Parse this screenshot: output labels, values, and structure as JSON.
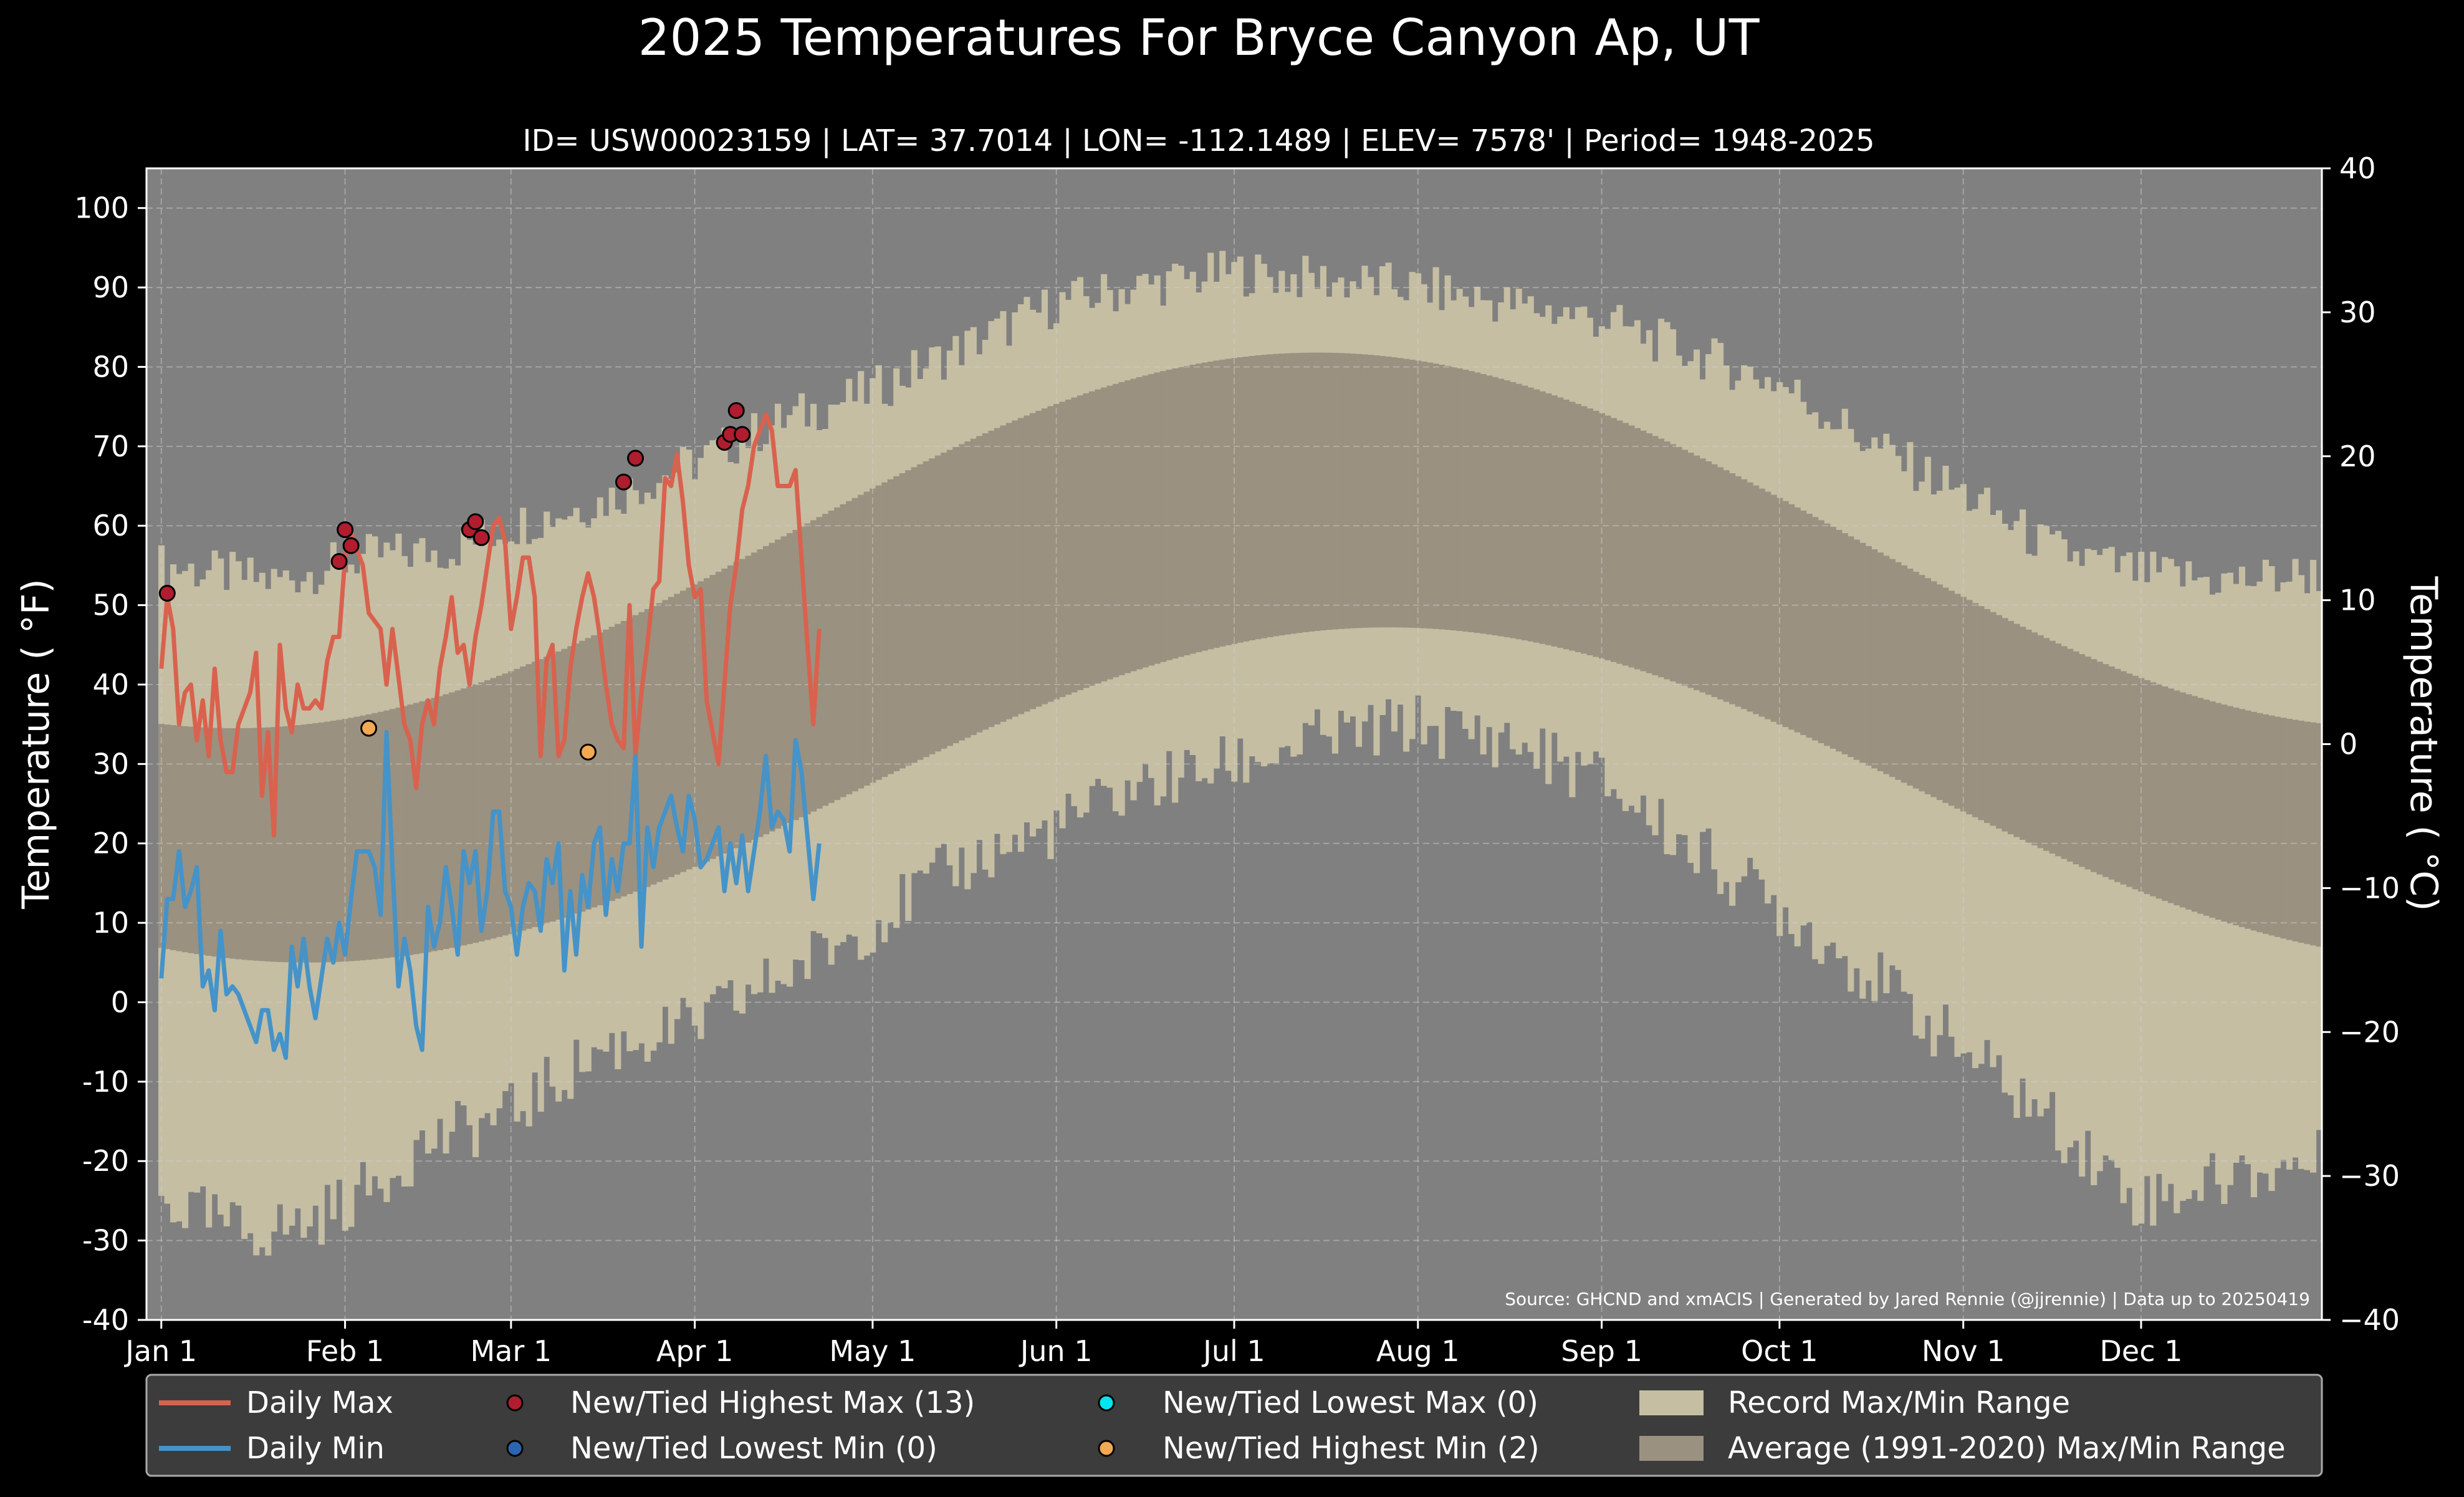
{
  "chart_data": {
    "type": "line",
    "title": "2025 Temperatures For Bryce Canyon Ap, UT",
    "subtitle": "ID= USW00023159 | LAT= 37.7014 | LON= -112.1489 | ELEV= 7578' | Period= 1948-2025",
    "ylabel_left": "Temperature ( °F)",
    "ylabel_right": "Temperature ( °C)",
    "source": "Source: GHCND and xmACIS | Generated by Jared Rennie (@jjrennie) | Data up to 20250419",
    "ylim_f": [
      -40,
      105
    ],
    "ylim_c": [
      -40,
      40
    ],
    "xlim_doy": [
      -1.5,
      365.5
    ],
    "grid": true,
    "legend_position": "bottom",
    "y_ticks_left": [
      "-40",
      "-30",
      "-20",
      "-10",
      "0",
      "10",
      "20",
      "30",
      "40",
      "50",
      "60",
      "70",
      "80",
      "90",
      "100"
    ],
    "y_ticks_right": [
      "−40",
      "−30",
      "−20",
      "−10",
      "0",
      "10",
      "20",
      "30",
      "40"
    ],
    "x_ticks": [
      {
        "doy": 1,
        "label": "Jan 1"
      },
      {
        "doy": 32,
        "label": "Feb 1"
      },
      {
        "doy": 60,
        "label": "Mar 1"
      },
      {
        "doy": 91,
        "label": "Apr 1"
      },
      {
        "doy": 121,
        "label": "May 1"
      },
      {
        "doy": 152,
        "label": "Jun 1"
      },
      {
        "doy": 182,
        "label": "Jul 1"
      },
      {
        "doy": 213,
        "label": "Aug 1"
      },
      {
        "doy": 244,
        "label": "Sep 1"
      },
      {
        "doy": 274,
        "label": "Oct 1"
      },
      {
        "doy": 305,
        "label": "Nov 1"
      },
      {
        "doy": 335,
        "label": "Dec 1"
      }
    ],
    "colors": {
      "background": "#000000",
      "plot_bg": "#808080",
      "record_range": "#c5bea3",
      "avg_range": "#9a9180",
      "daily_max": "#d9624e",
      "daily_min": "#4593c8",
      "high_max_marker": "#b01d2e",
      "low_min_marker": "#2b65b0",
      "low_max_marker": "#00e5ee",
      "high_min_marker": "#f3a951",
      "legend_bg": "#3c3c3c"
    },
    "record_max_anchors": [
      [
        1,
        55
      ],
      [
        20,
        53
      ],
      [
        35,
        56
      ],
      [
        50,
        57
      ],
      [
        60,
        60
      ],
      [
        75,
        63
      ],
      [
        91,
        68
      ],
      [
        105,
        73
      ],
      [
        121,
        77
      ],
      [
        135,
        82
      ],
      [
        152,
        88
      ],
      [
        165,
        90
      ],
      [
        182,
        92
      ],
      [
        196,
        91
      ],
      [
        213,
        90
      ],
      [
        228,
        88
      ],
      [
        244,
        86
      ],
      [
        258,
        82
      ],
      [
        274,
        78
      ],
      [
        290,
        70
      ],
      [
        305,
        64
      ],
      [
        320,
        57
      ],
      [
        335,
        54
      ],
      [
        350,
        53
      ],
      [
        365,
        54
      ]
    ],
    "record_min_anchors": [
      [
        1,
        -25
      ],
      [
        15,
        -29
      ],
      [
        25,
        -28
      ],
      [
        35,
        -24
      ],
      [
        45,
        -18
      ],
      [
        60,
        -14
      ],
      [
        75,
        -6
      ],
      [
        91,
        -3
      ],
      [
        105,
        3
      ],
      [
        121,
        10
      ],
      [
        135,
        17
      ],
      [
        152,
        22
      ],
      [
        165,
        27
      ],
      [
        182,
        30
      ],
      [
        196,
        33
      ],
      [
        213,
        35
      ],
      [
        228,
        33
      ],
      [
        244,
        28
      ],
      [
        258,
        20
      ],
      [
        274,
        12
      ],
      [
        290,
        3
      ],
      [
        305,
        -6
      ],
      [
        320,
        -15
      ],
      [
        335,
        -25
      ],
      [
        350,
        -22
      ],
      [
        365,
        -20
      ]
    ],
    "average_range": {
      "note": "smooth 1991-2020 normals",
      "max_min_f": 34.5,
      "max_peak_f": 81.8,
      "max_peak_doy": 196,
      "min_min_f": 5.0,
      "min_peak_f": 47.2,
      "min_peak_doy": 208
    },
    "daily_max_start_doy": 1,
    "daily_max": [
      42,
      51,
      47,
      35,
      39,
      40,
      33,
      38,
      31,
      42,
      33,
      29,
      29,
      35,
      37,
      39,
      44,
      26,
      34,
      21,
      45,
      37,
      34,
      40,
      37,
      37,
      38,
      37,
      43,
      46,
      46,
      56,
      59,
      57,
      55,
      49,
      48,
      47,
      40,
      47,
      41,
      35,
      33,
      27,
      35,
      38,
      35,
      42,
      46,
      51,
      44,
      45,
      40,
      46,
      50,
      55,
      60,
      61,
      58,
      47,
      51,
      56,
      56,
      51,
      31,
      43,
      45,
      31,
      33,
      42,
      47,
      51,
      54,
      51,
      46,
      40,
      35,
      33,
      32,
      50,
      31,
      39,
      45,
      52,
      53,
      66,
      65,
      69,
      63,
      55,
      51,
      52,
      38,
      34,
      30,
      40,
      50,
      55,
      62,
      65,
      70,
      72,
      74,
      72,
      65,
      65,
      65,
      67,
      56,
      45,
      35,
      47
    ],
    "daily_min": [
      3,
      13,
      13,
      19,
      12,
      14,
      17,
      2,
      4,
      -1,
      9,
      1,
      2,
      1,
      -1,
      -3,
      -5,
      -1,
      -1,
      -6,
      -4,
      -7,
      7,
      2,
      8,
      2,
      -2,
      3,
      8,
      5,
      10,
      6,
      13,
      19,
      19,
      19,
      17,
      11,
      34,
      17,
      2,
      8,
      4,
      -3,
      -6,
      12,
      7,
      10,
      17,
      12,
      6,
      19,
      15,
      19,
      9,
      14,
      24,
      24,
      14,
      12,
      6,
      12,
      15,
      14,
      9,
      18,
      15,
      20,
      4,
      14,
      6,
      16,
      12,
      20,
      22,
      11,
      18,
      14,
      20,
      20,
      31,
      7,
      22,
      17,
      22,
      24,
      26,
      22,
      19,
      26,
      23,
      17,
      18,
      20,
      22,
      14,
      20,
      15,
      21,
      14,
      19,
      24,
      31,
      22,
      24,
      23,
      19,
      33,
      29,
      21,
      13,
      20
    ],
    "new_tied_highest_max": [
      [
        2,
        51.5
      ],
      [
        31,
        55.5
      ],
      [
        32,
        59.5
      ],
      [
        33,
        57.5
      ],
      [
        53,
        59.5
      ],
      [
        54,
        60.5
      ],
      [
        55,
        58.5
      ],
      [
        79,
        65.5
      ],
      [
        81,
        68.5
      ],
      [
        96,
        70.5
      ],
      [
        97,
        71.5
      ],
      [
        98,
        74.5
      ],
      [
        99,
        71.5
      ]
    ],
    "new_tied_lowest_min": [],
    "new_tied_lowest_max": [],
    "new_tied_highest_min": [
      [
        36,
        34.5
      ],
      [
        73,
        31.5
      ]
    ]
  },
  "legend": {
    "daily_max": "Daily Max",
    "daily_min": "Daily Min",
    "high_max": "New/Tied Highest Max (13)",
    "low_min": "New/Tied Lowest Min (0)",
    "low_max": "New/Tied Lowest Max (0)",
    "high_min": "New/Tied Highest Min (2)",
    "record_range": "Record Max/Min Range",
    "avg_range": "Average (1991-2020) Max/Min Range"
  }
}
